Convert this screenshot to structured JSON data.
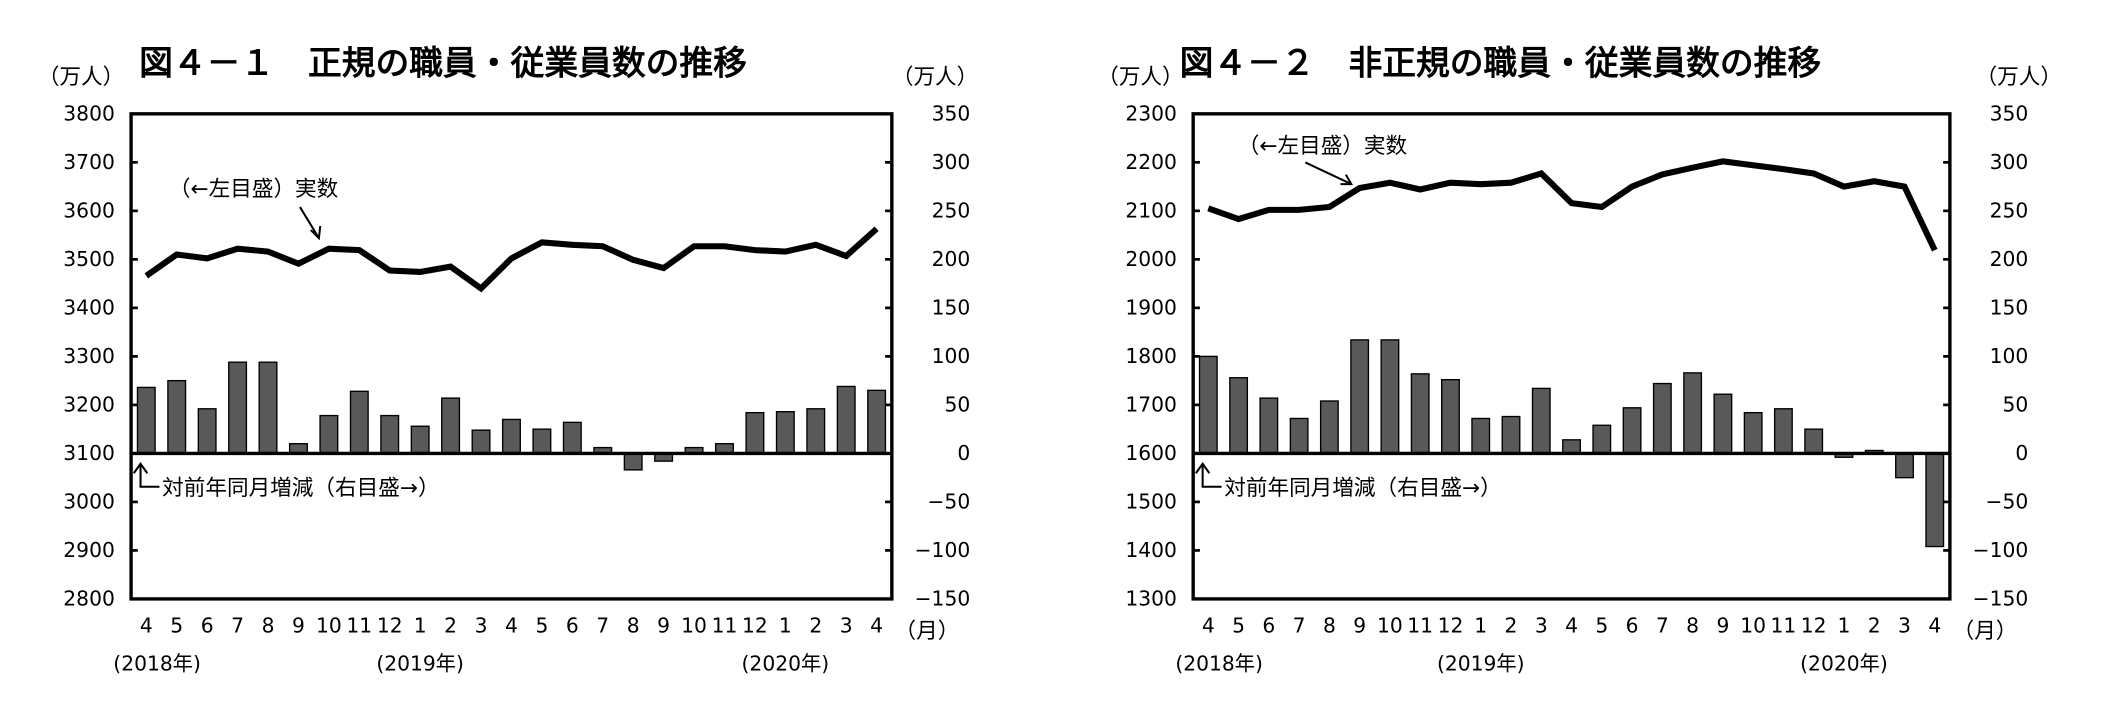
{
  "chart_data": [
    {
      "type": "bar+line",
      "title": "図４－１　正規の職員・従業員数の推移",
      "left_unit": "（万人）",
      "right_unit": "（万人）",
      "month_unit": "（月）",
      "x_ticks": [
        "4",
        "5",
        "6",
        "7",
        "8",
        "9",
        "10",
        "11",
        "12",
        "1",
        "2",
        "3",
        "4",
        "5",
        "6",
        "7",
        "8",
        "9",
        "10",
        "11",
        "12",
        "1",
        "2",
        "3",
        "4"
      ],
      "year_labels": [
        {
          "label": "(2018年)",
          "at_index": 0
        },
        {
          "label": "(2019年)",
          "at_index": 9
        },
        {
          "label": "(2020年)",
          "at_index": 21
        }
      ],
      "left_axis": {
        "ylim": [
          2800,
          3800
        ],
        "ticks": [
          3800,
          3700,
          3600,
          3500,
          3400,
          3300,
          3200,
          3100,
          3000,
          2900,
          2800
        ]
      },
      "right_axis": {
        "ylim": [
          -150,
          350
        ],
        "ticks": [
          350,
          300,
          250,
          200,
          150,
          100,
          50,
          0,
          -50,
          -100,
          -150
        ]
      },
      "line_series": {
        "annotation": "（←左目盛）実数",
        "axis": "left",
        "values": [
          3466,
          3510,
          3502,
          3522,
          3516,
          3491,
          3522,
          3519,
          3477,
          3474,
          3485,
          3440,
          3502,
          3535,
          3530,
          3527,
          3499,
          3482,
          3527,
          3527,
          3519,
          3516,
          3530,
          3507,
          3563
        ]
      },
      "bar_series": {
        "annotation": "対前年同月増減（右目盛→）",
        "axis": "right",
        "values": [
          68,
          75,
          46,
          94,
          94,
          10,
          39,
          64,
          39,
          28,
          57,
          24,
          35,
          25,
          32,
          6,
          -17,
          -8,
          6,
          10,
          42,
          43,
          46,
          69,
          65
        ]
      },
      "grid": false
    },
    {
      "type": "bar+line",
      "title": "図４－２　非正規の職員・従業員数の推移",
      "left_unit": "（万人）",
      "right_unit": "（万人）",
      "month_unit": "（月）",
      "x_ticks": [
        "4",
        "5",
        "6",
        "7",
        "8",
        "9",
        "10",
        "11",
        "12",
        "1",
        "2",
        "3",
        "4",
        "5",
        "6",
        "7",
        "8",
        "9",
        "10",
        "11",
        "12",
        "1",
        "2",
        "3",
        "4"
      ],
      "year_labels": [
        {
          "label": "(2018年)",
          "at_index": 0
        },
        {
          "label": "(2019年)",
          "at_index": 9
        },
        {
          "label": "(2020年)",
          "at_index": 21
        }
      ],
      "left_axis": {
        "ylim": [
          1300,
          2300
        ],
        "ticks": [
          2300,
          2200,
          2100,
          2000,
          1900,
          1800,
          1700,
          1600,
          1500,
          1400,
          1300
        ]
      },
      "right_axis": {
        "ylim": [
          -150,
          350
        ],
        "ticks": [
          350,
          300,
          250,
          200,
          150,
          100,
          50,
          0,
          -50,
          -100,
          -150
        ]
      },
      "line_series": {
        "annotation": "（←左目盛）実数",
        "axis": "left",
        "values": [
          2105,
          2083,
          2102,
          2102,
          2108,
          2147,
          2158,
          2144,
          2158,
          2155,
          2158,
          2177,
          2116,
          2108,
          2150,
          2175,
          2189,
          2202,
          2194,
          2186,
          2177,
          2150,
          2161,
          2150,
          2019
        ]
      },
      "bar_series": {
        "annotation": "対前年同月増減（右目盛→）",
        "axis": "right",
        "values": [
          100,
          78,
          57,
          36,
          54,
          117,
          117,
          82,
          76,
          36,
          38,
          67,
          14,
          29,
          47,
          72,
          83,
          61,
          42,
          46,
          25,
          -4,
          3,
          -25,
          -96
        ]
      },
      "grid": false
    }
  ],
  "colors": {
    "bar_fill": "#595959",
    "line": "#000000"
  }
}
